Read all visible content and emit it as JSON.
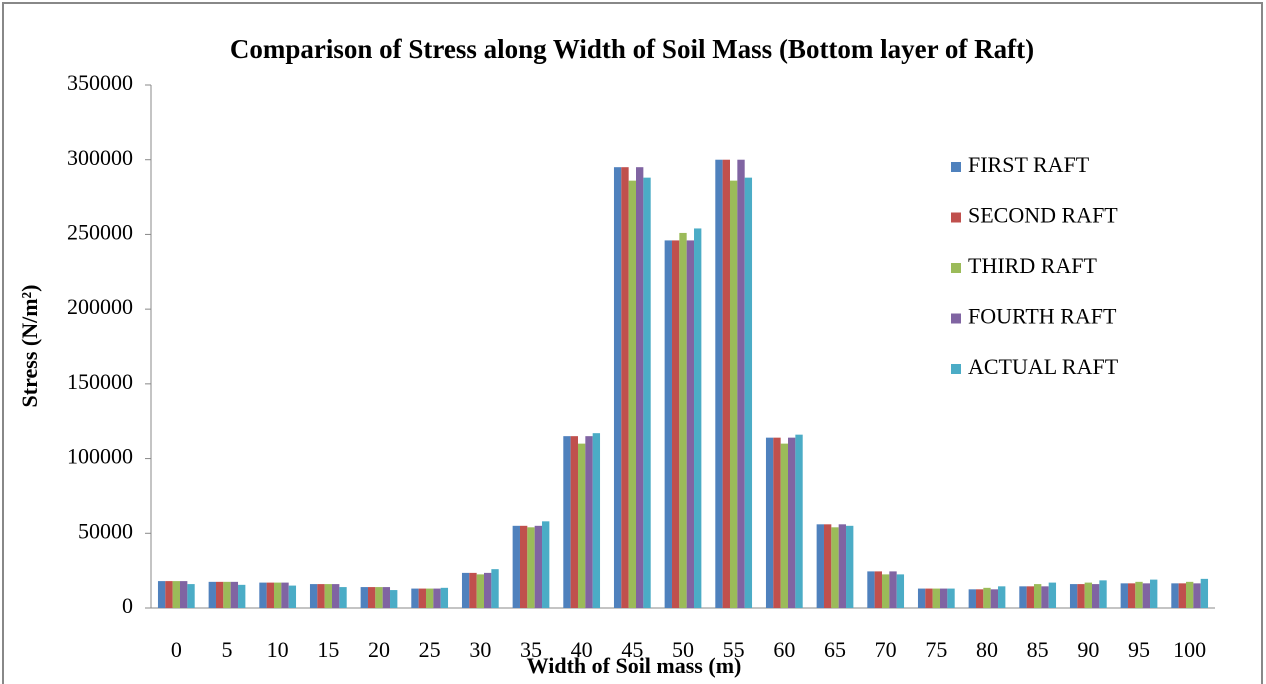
{
  "chart_data": {
    "type": "bar",
    "title": "Comparison of Stress along Width of Soil Mass (Bottom layer of Raft)",
    "x_label": "Width of Soil mass (m)",
    "y_label": "Stress (N/m²)",
    "categories": [
      "0",
      "5",
      "10",
      "15",
      "20",
      "25",
      "30",
      "35",
      "40",
      "45",
      "50",
      "55",
      "60",
      "65",
      "70",
      "75",
      "80",
      "85",
      "90",
      "95",
      "100"
    ],
    "series": [
      {
        "name": "FIRST RAFT",
        "color": "#4f81bd",
        "values": [
          18000,
          17500,
          17000,
          16000,
          14000,
          13000,
          23500,
          55000,
          115000,
          295000,
          246000,
          300000,
          114000,
          56000,
          24500,
          13000,
          12500,
          14500,
          16000,
          16500,
          16500
        ]
      },
      {
        "name": "SECOND RAFT",
        "color": "#c0504d",
        "values": [
          18000,
          17500,
          17000,
          16000,
          14000,
          13000,
          23500,
          55000,
          115000,
          295000,
          246000,
          300000,
          114000,
          56000,
          24500,
          13000,
          12500,
          14500,
          16000,
          16500,
          16500
        ]
      },
      {
        "name": "THIRD RAFT",
        "color": "#9bbb59",
        "values": [
          18000,
          17500,
          17000,
          16000,
          14000,
          13000,
          22500,
          54000,
          110000,
          286000,
          251000,
          286000,
          110000,
          54000,
          22500,
          13000,
          13500,
          16000,
          17000,
          17500,
          17500
        ]
      },
      {
        "name": "FOURTH RAFT",
        "color": "#8064a2",
        "values": [
          18000,
          17500,
          17000,
          16000,
          14000,
          13000,
          23500,
          55000,
          115000,
          295000,
          246000,
          300000,
          114000,
          56000,
          24500,
          13000,
          12500,
          14500,
          16000,
          16500,
          16500
        ]
      },
      {
        "name": "ACTUAL RAFT",
        "color": "#4bacc6",
        "values": [
          16000,
          15500,
          15000,
          14000,
          12000,
          13500,
          26000,
          58000,
          117000,
          288000,
          254000,
          288000,
          116000,
          55000,
          22500,
          13000,
          14500,
          17000,
          18500,
          19000,
          19500
        ]
      }
    ],
    "ylim": [
      0,
      350000
    ],
    "yticks": [
      0,
      50000,
      100000,
      150000,
      200000,
      250000,
      300000,
      350000
    ],
    "grid": false,
    "legend": "right"
  }
}
